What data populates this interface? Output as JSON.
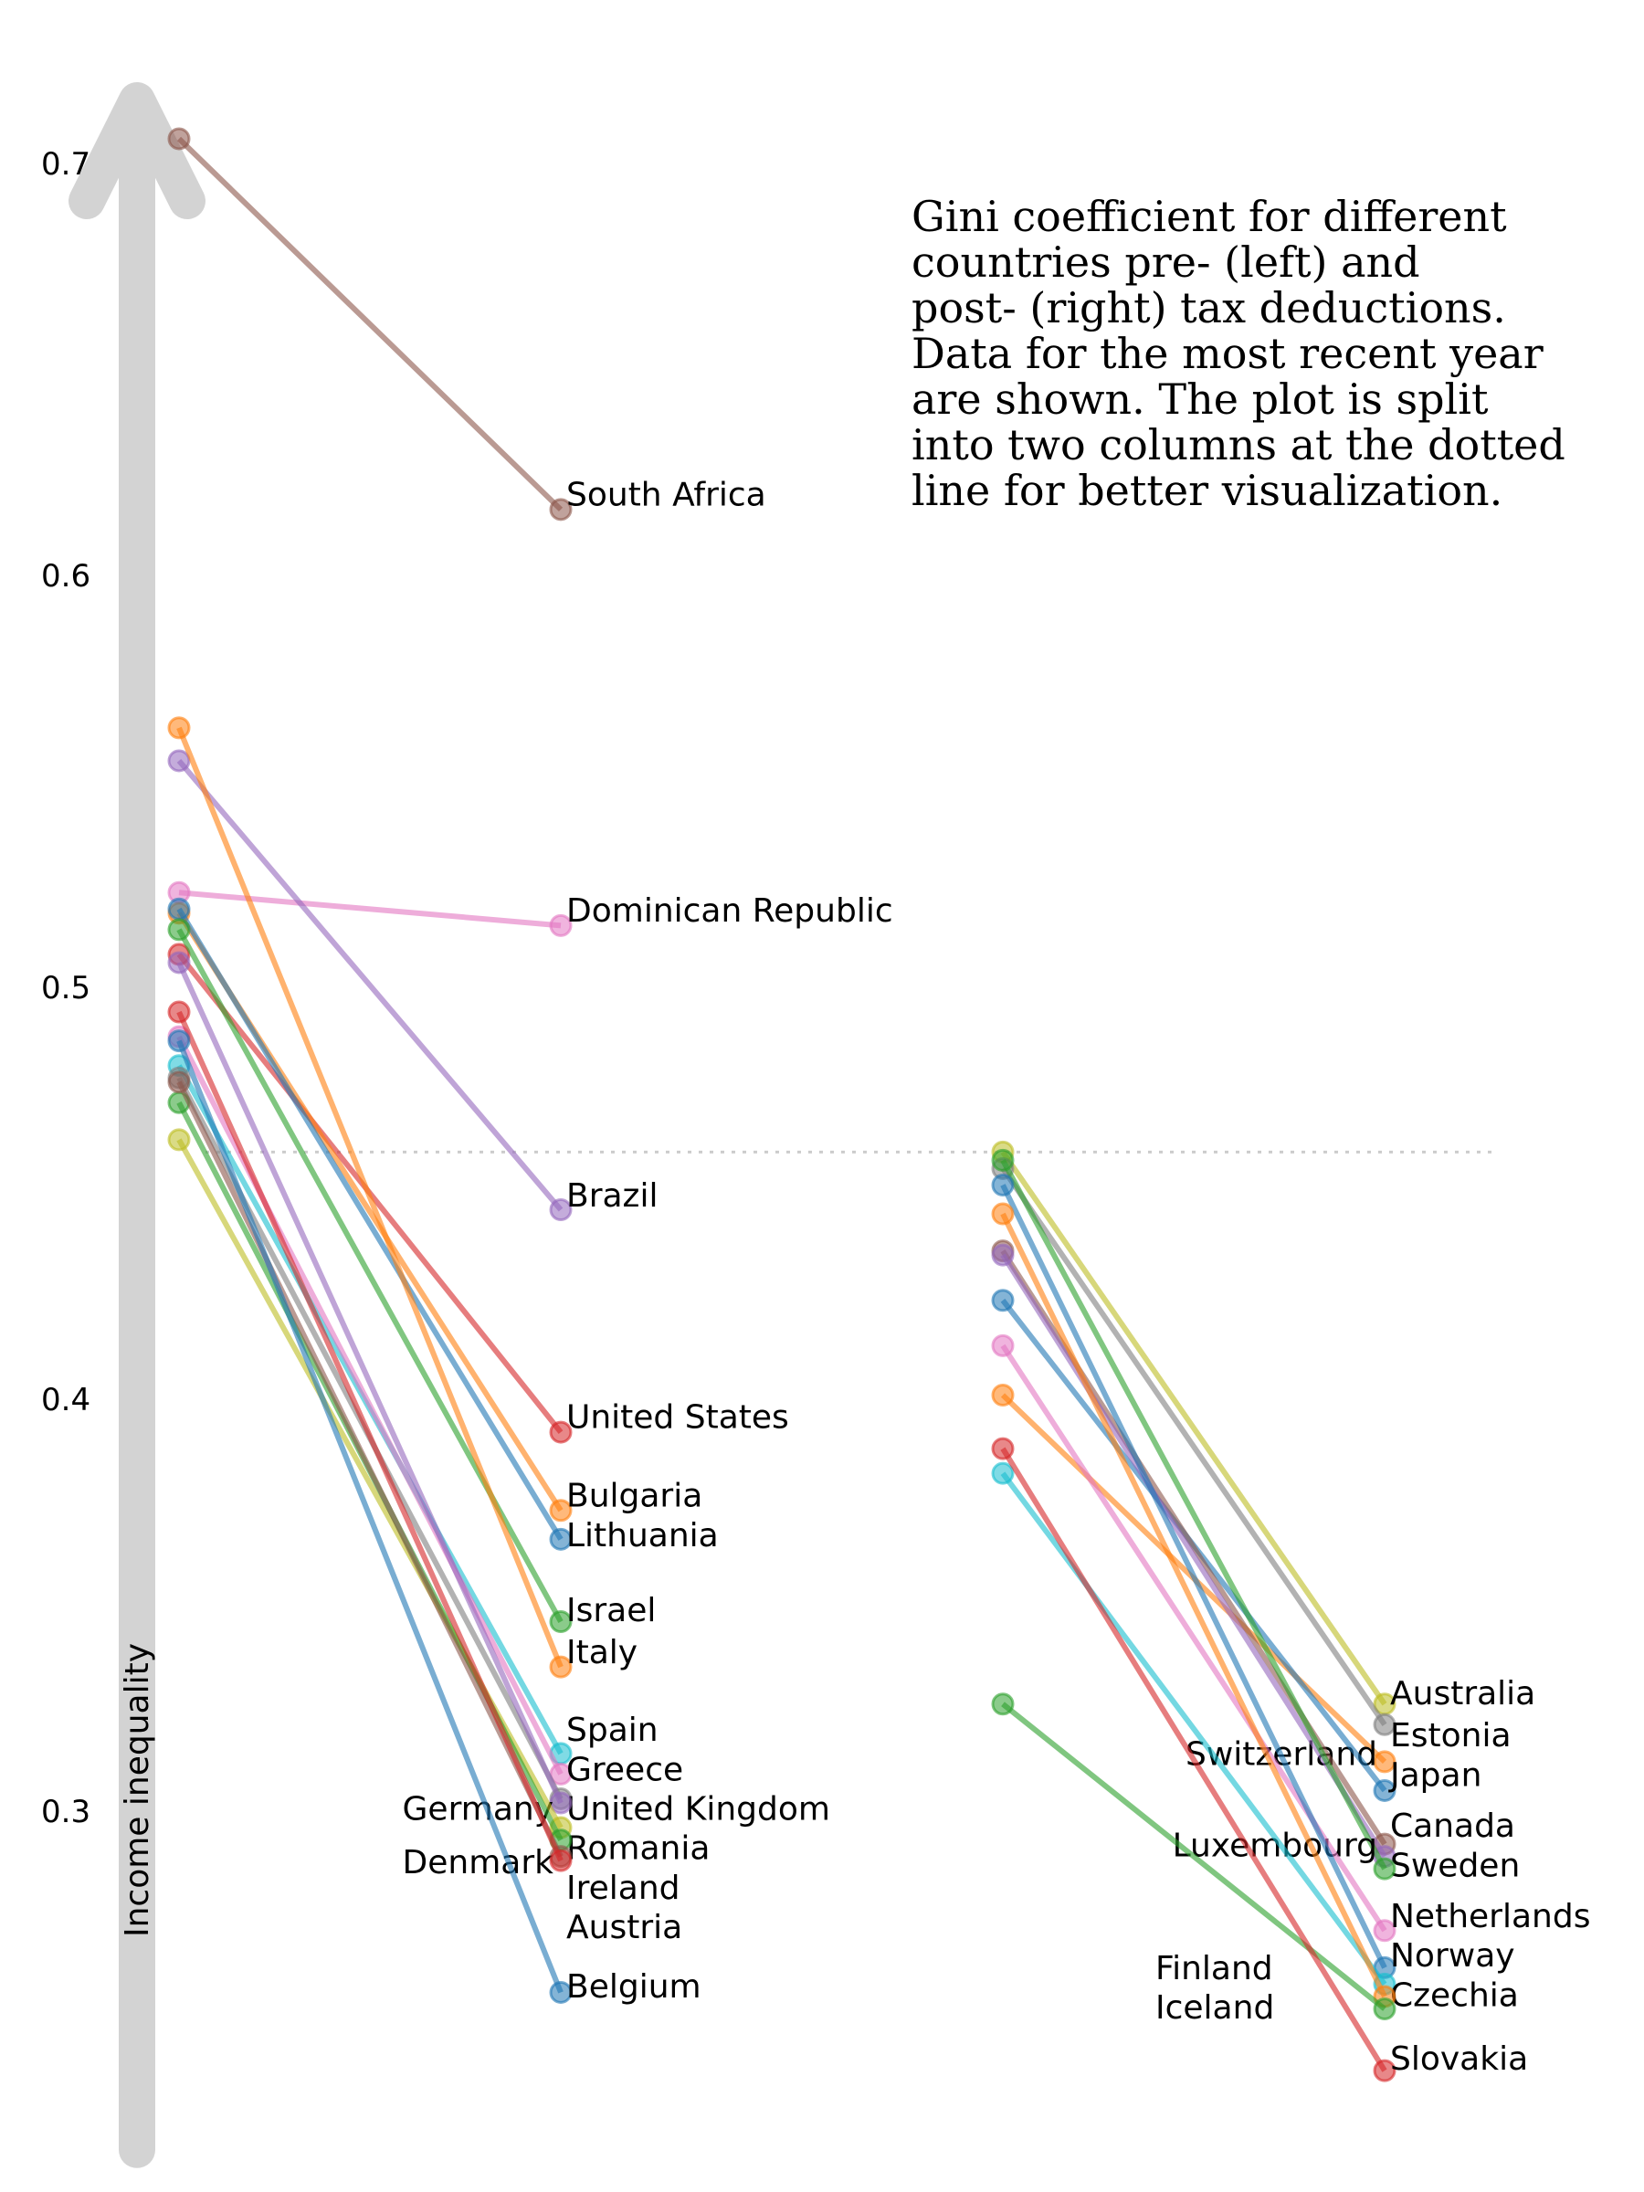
{
  "chart_data": {
    "type": "slope",
    "ylabel": "Income inequality",
    "ylim": [
      0.22,
      0.72
    ],
    "yticks": [
      "0.3",
      "0.4",
      "0.5",
      "0.6",
      "0.7"
    ],
    "split_value": 0.46,
    "annotation": "Gini coefficient for different\ncountries pre- (left) and\npost- (right) tax deductions.\nData for the most recent year\nare shown. The plot is split\ninto two columns at the dotted\nline for better visualization.",
    "colors": [
      "#1f77b4",
      "#ff7f0e",
      "#2ca02c",
      "#d62728",
      "#9467bd",
      "#8c564b",
      "#e377c2",
      "#7f7f7f",
      "#bcbd22",
      "#17becf"
    ],
    "columns": [
      {
        "series": [
          {
            "name": "South Africa",
            "pre": 0.706,
            "post": 0.616,
            "color": "#8c564b"
          },
          {
            "name": "Dominican Republic",
            "pre": 0.523,
            "post": 0.515,
            "color": "#e377c2"
          },
          {
            "name": "Brazil",
            "pre": 0.555,
            "post": 0.446,
            "color": "#9467bd"
          },
          {
            "name": "United States",
            "pre": 0.508,
            "post": 0.392,
            "color": "#d62728"
          },
          {
            "name": "Bulgaria",
            "pre": 0.518,
            "post": 0.373,
            "color": "#ff7f0e"
          },
          {
            "name": "Lithuania",
            "pre": 0.519,
            "post": 0.366,
            "color": "#1f77b4"
          },
          {
            "name": "Israel",
            "pre": 0.514,
            "post": 0.346,
            "color": "#2ca02c"
          },
          {
            "name": "Italy",
            "pre": 0.563,
            "post": 0.335,
            "color": "#ff7f0e"
          },
          {
            "name": "Spain",
            "pre": 0.481,
            "post": 0.314,
            "color": "#17becf"
          },
          {
            "name": "Greece",
            "pre": 0.488,
            "post": 0.309,
            "color": "#e377c2"
          },
          {
            "name": "United Kingdom",
            "pre": 0.478,
            "post": 0.303,
            "color": "#7f7f7f"
          },
          {
            "name": "Germany",
            "pre": 0.506,
            "post": 0.302,
            "color": "#9467bd"
          },
          {
            "name": "Romania",
            "pre": 0.463,
            "post": 0.296,
            "color": "#bcbd22"
          },
          {
            "name": "Ireland",
            "pre": 0.472,
            "post": 0.293,
            "color": "#2ca02c"
          },
          {
            "name": "Denmark",
            "pre": 0.477,
            "post": 0.289,
            "color": "#8c564b"
          },
          {
            "name": "Austria",
            "pre": 0.494,
            "post": 0.288,
            "color": "#d62728"
          },
          {
            "name": "Belgium",
            "pre": 0.487,
            "post": 0.256,
            "color": "#1f77b4"
          }
        ]
      },
      {
        "series": [
          {
            "name": "Australia",
            "pre": 0.46,
            "post": 0.326,
            "color": "#bcbd22"
          },
          {
            "name": "Estonia",
            "pre": 0.456,
            "post": 0.321,
            "color": "#7f7f7f"
          },
          {
            "name": "Switzerland",
            "pre": 0.401,
            "post": 0.312,
            "color": "#ff7f0e"
          },
          {
            "name": "Japan",
            "pre": 0.424,
            "post": 0.305,
            "color": "#1f77b4"
          },
          {
            "name": "Canada",
            "pre": 0.436,
            "post": 0.292,
            "color": "#8c564b"
          },
          {
            "name": "Sweden",
            "pre": 0.435,
            "post": 0.289,
            "color": "#9467bd"
          },
          {
            "name": "Luxembourg",
            "pre": 0.458,
            "post": 0.286,
            "color": "#2ca02c"
          },
          {
            "name": "Netherlands",
            "pre": 0.413,
            "post": 0.271,
            "color": "#e377c2"
          },
          {
            "name": "Norway",
            "pre": 0.452,
            "post": 0.262,
            "color": "#1f77b4"
          },
          {
            "name": "Czechia",
            "pre": 0.382,
            "post": 0.258,
            "color": "#17becf"
          },
          {
            "name": "Finland",
            "pre": 0.445,
            "post": 0.255,
            "color": "#ff7f0e"
          },
          {
            "name": "Iceland",
            "pre": 0.326,
            "post": 0.252,
            "color": "#2ca02c"
          },
          {
            "name": "Slovakia",
            "pre": 0.388,
            "post": 0.237,
            "color": "#d62728"
          }
        ]
      }
    ]
  }
}
